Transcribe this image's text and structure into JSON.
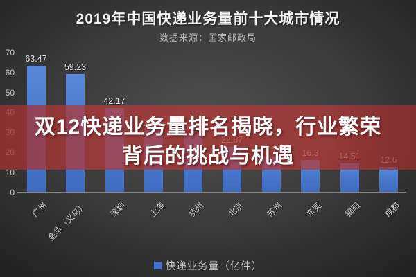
{
  "header": {
    "title": "2019年中国快递业务量前十大城市情况",
    "source": "数据来源：国家邮政局"
  },
  "overlay": {
    "line1": "双12快递业务量排名揭晓，行业繁荣",
    "line2": "背后的挑战与机遇"
  },
  "legend": {
    "label": "快递业务量（亿件）",
    "swatch_color": "#3a76d2"
  },
  "colors": {
    "bar": "#4776ca",
    "banner": "#9d4243",
    "background_center": "#4f4f4f",
    "background_edge": "#1a1a1a",
    "value_label": "#e2e2e2",
    "axis_label": "#c6c6c6"
  },
  "chart_data": {
    "type": "bar",
    "title": "2019年中国快递业务量前十大城市情况",
    "subtitle": "数据来源：国家邮政局",
    "categories": [
      "广州",
      "金华（义乌）",
      "深圳",
      "上海",
      "杭州",
      "北京",
      "苏州",
      "东莞",
      "揭阳",
      "成都"
    ],
    "values": [
      63.47,
      59.23,
      42.17,
      31.26,
      28.86,
      22.87,
      17.76,
      16.3,
      14.51,
      12.6
    ],
    "value_labels": [
      "63.47",
      "59.23",
      "42.17",
      "31.26",
      "28.86",
      "22.87",
      "17.76",
      "16.3",
      "14.51",
      "12.6"
    ],
    "xlabel": "",
    "ylabel": "",
    "ylim": [
      0,
      70
    ],
    "yticks": [
      0,
      10,
      20,
      30,
      40,
      50,
      60,
      70
    ],
    "grid": false,
    "legend_entries": [
      "快递业务量（亿件）"
    ],
    "legend_position": "bottom",
    "note": "部分数值被中部文字横幅遮挡，按柱高估读"
  }
}
